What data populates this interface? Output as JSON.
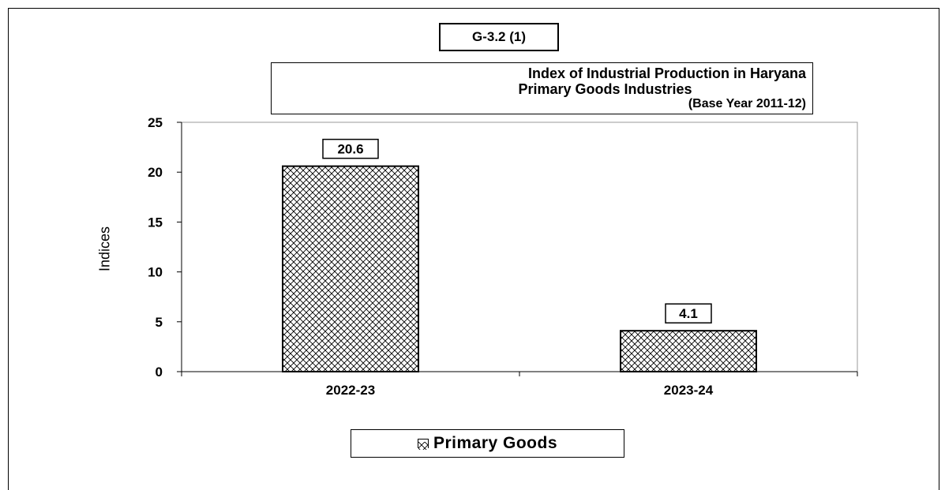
{
  "figure_id": "G-3.2 (1)",
  "chart_data": {
    "type": "bar",
    "title": "Index of Industrial Production in Haryana",
    "subtitle": "Primary  Goods Industries",
    "base_note": "(Base Year  2011-12)",
    "xlabel": "",
    "ylabel": "Indices",
    "categories": [
      "2022-23",
      "2023-24"
    ],
    "series": [
      {
        "name": "Primary Goods",
        "values": [
          20.6,
          4.1
        ]
      }
    ],
    "ylim": [
      0,
      25
    ],
    "yticks": [
      0,
      5,
      10,
      15,
      20,
      25
    ],
    "data_labels": [
      "20.6",
      "4.1"
    ],
    "grid": false,
    "legend_position": "bottom",
    "bar_fill": "crosshatch",
    "colors": {
      "bar_stroke": "#000000",
      "hatch": "#000000",
      "background": "#ffffff"
    }
  }
}
